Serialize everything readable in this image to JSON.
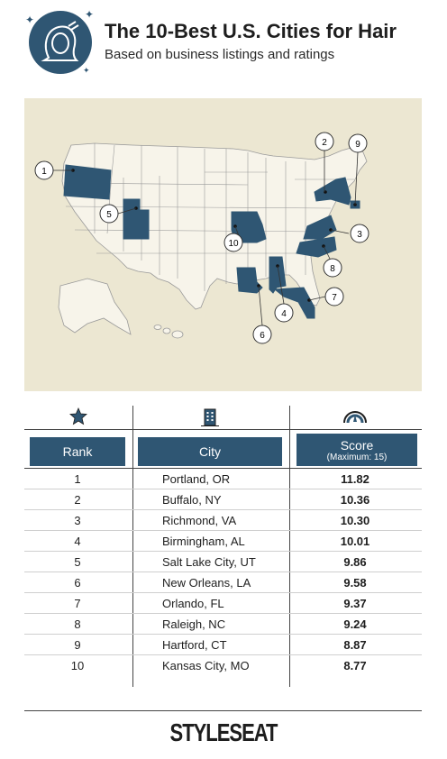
{
  "header": {
    "title": "The 10-Best U.S. Cities for Hair",
    "subtitle": "Based on business listings and ratings",
    "logo_icon": "woman-hair-icon",
    "sparkle_icon": "sparkle-icon"
  },
  "map": {
    "markers": [
      {
        "label": "1"
      },
      {
        "label": "2"
      },
      {
        "label": "3"
      },
      {
        "label": "4"
      },
      {
        "label": "5"
      },
      {
        "label": "6"
      },
      {
        "label": "7"
      },
      {
        "label": "8"
      },
      {
        "label": "9"
      },
      {
        "label": "10"
      }
    ],
    "colors": {
      "background": "#ece7d2",
      "land": "#f7f4ea",
      "highlight": "#2f5673",
      "border": "#9a9a9a"
    }
  },
  "table": {
    "headers": {
      "rank": "Rank",
      "city": "City",
      "score": "Score",
      "score_sub": "(Maximum: 15)"
    },
    "header_icons": [
      "star-icon",
      "building-icon",
      "gauge-icon"
    ],
    "rows": [
      {
        "rank": "1",
        "city": "Portland, OR",
        "score": "11.82"
      },
      {
        "rank": "2",
        "city": "Buffalo, NY",
        "score": "10.36"
      },
      {
        "rank": "3",
        "city": "Richmond, VA",
        "score": "10.30"
      },
      {
        "rank": "4",
        "city": "Birmingham, AL",
        "score": "10.01"
      },
      {
        "rank": "5",
        "city": "Salt Lake City, UT",
        "score": "9.86"
      },
      {
        "rank": "6",
        "city": "New Orleans, LA",
        "score": "9.58"
      },
      {
        "rank": "7",
        "city": "Orlando, FL",
        "score": "9.37"
      },
      {
        "rank": "8",
        "city": "Raleigh, NC",
        "score": "9.24"
      },
      {
        "rank": "9",
        "city": "Hartford, CT",
        "score": "8.87"
      },
      {
        "rank": "10",
        "city": "Kansas City, MO",
        "score": "8.77"
      }
    ]
  },
  "footer": {
    "brand": "STYLESEAT"
  },
  "colors": {
    "accent": "#2f5673",
    "text": "#1e1e1e"
  }
}
